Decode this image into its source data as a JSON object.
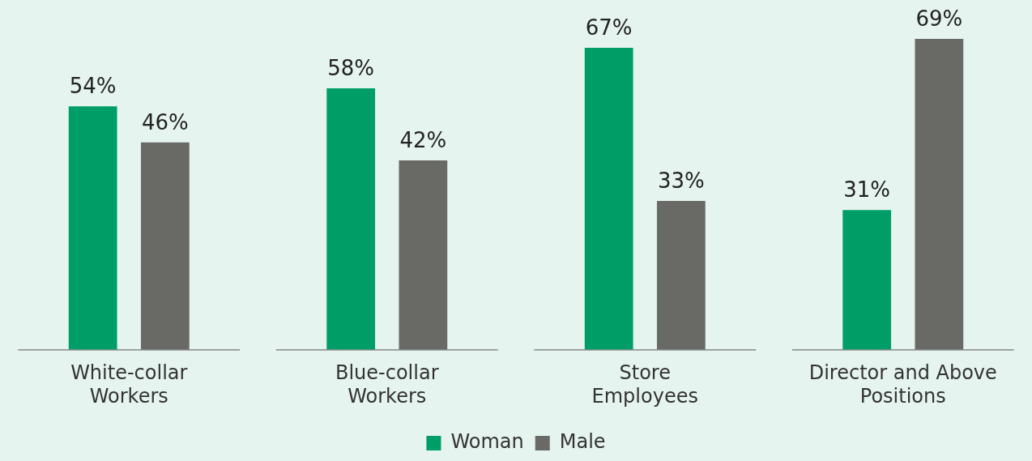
{
  "chart_data": {
    "type": "bar",
    "categories": [
      "White-collar Workers",
      "Blue-collar Workers",
      "Store Employees",
      "Director and Above Positions"
    ],
    "series": [
      {
        "name": "Woman",
        "color": "#009e67",
        "values": [
          54,
          58,
          67,
          31
        ],
        "value_labels": [
          "54%",
          "58%",
          "67%",
          "31%"
        ]
      },
      {
        "name": "Male",
        "color": "#696a65",
        "values": [
          46,
          42,
          33,
          69
        ],
        "value_labels": [
          "46%",
          "42%",
          "33%",
          "69%"
        ]
      }
    ],
    "legend": "bottom",
    "grid": false
  }
}
